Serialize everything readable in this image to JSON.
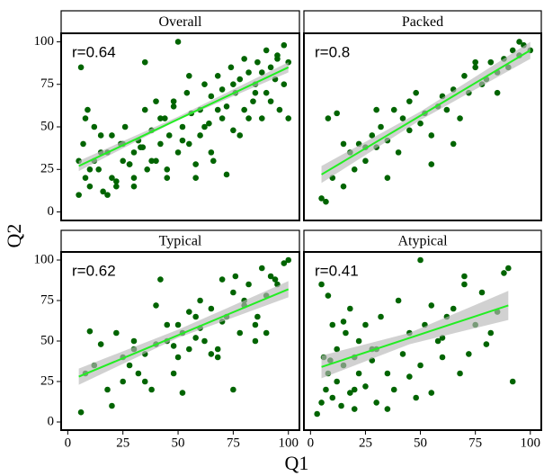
{
  "chart_data": {
    "type": "scatter",
    "x_label": "Q1",
    "y_label": "Q2",
    "xlim": [
      -3,
      105
    ],
    "ylim": [
      -5,
      105
    ],
    "xticks": [
      0,
      25,
      50,
      75,
      100
    ],
    "yticks": [
      0,
      25,
      50,
      75,
      100
    ],
    "color": "#006400",
    "line_color": "#22ee22",
    "band_color": "#b8b8b8",
    "panels": [
      {
        "title": "Overall",
        "annotation": "r=0.64",
        "x": [
          5,
          6,
          7,
          8,
          9,
          10,
          12,
          14,
          15,
          16,
          18,
          20,
          22,
          24,
          25,
          26,
          28,
          30,
          30,
          32,
          34,
          35,
          36,
          38,
          40,
          40,
          42,
          44,
          45,
          46,
          48,
          50,
          50,
          52,
          54,
          55,
          56,
          58,
          60,
          60,
          62,
          64,
          65,
          66,
          68,
          70,
          70,
          72,
          74,
          75,
          76,
          78,
          80,
          80,
          82,
          84,
          85,
          86,
          88,
          90,
          90,
          92,
          94,
          95,
          96,
          98,
          100,
          100,
          5,
          8,
          10,
          12,
          15,
          18,
          20,
          22,
          25,
          28,
          30,
          33,
          35,
          38,
          42,
          45,
          48,
          52,
          55,
          58,
          62,
          65,
          68,
          72,
          75,
          78,
          82,
          85,
          88,
          92,
          95,
          98
        ],
        "y": [
          10,
          85,
          40,
          20,
          60,
          15,
          30,
          25,
          45,
          12,
          35,
          20,
          18,
          40,
          30,
          50,
          28,
          35,
          15,
          42,
          38,
          60,
          25,
          48,
          30,
          65,
          40,
          55,
          20,
          45,
          62,
          100,
          35,
          50,
          70,
          40,
          58,
          28,
          60,
          45,
          75,
          52,
          68,
          30,
          80,
          55,
          72,
          62,
          85,
          48,
          70,
          78,
          90,
          60,
          82,
          65,
          75,
          88,
          55,
          95,
          70,
          85,
          78,
          92,
          60,
          98,
          88,
          55,
          30,
          55,
          25,
          50,
          35,
          10,
          45,
          15,
          40,
          28,
          20,
          38,
          88,
          30,
          55,
          25,
          65,
          42,
          80,
          20,
          50,
          35,
          60,
          22,
          75,
          45,
          55,
          70,
          82,
          65,
          90,
          75
        ],
        "fit": {
          "x": [
            5,
            100
          ],
          "y": [
            27,
            85
          ]
        },
        "band": {
          "x": [
            5,
            50,
            100
          ],
          "lower": [
            24,
            54,
            82
          ],
          "upper": [
            30,
            56,
            88
          ]
        }
      },
      {
        "title": "Packed",
        "annotation": "r=0.8",
        "x": [
          5,
          7,
          10,
          12,
          15,
          18,
          20,
          22,
          25,
          28,
          30,
          32,
          35,
          38,
          40,
          42,
          45,
          48,
          50,
          52,
          55,
          58,
          60,
          62,
          65,
          68,
          70,
          72,
          75,
          78,
          80,
          82,
          85,
          88,
          90,
          92,
          95,
          97,
          100,
          8,
          15,
          25,
          35,
          45,
          55,
          65,
          75,
          85,
          95,
          30
        ],
        "y": [
          8,
          6,
          20,
          58,
          15,
          35,
          25,
          40,
          30,
          45,
          38,
          50,
          42,
          60,
          35,
          55,
          48,
          70,
          52,
          58,
          45,
          62,
          68,
          60,
          72,
          55,
          80,
          70,
          85,
          75,
          78,
          88,
          82,
          90,
          85,
          95,
          92,
          98,
          95,
          55,
          40,
          38,
          20,
          65,
          28,
          40,
          88,
          70,
          100,
          60
        ],
        "fit": {
          "x": [
            5,
            100
          ],
          "y": [
            22,
            95
          ]
        },
        "band": {
          "x": [
            5,
            50,
            100
          ],
          "lower": [
            17,
            54,
            90
          ],
          "upper": [
            27,
            59,
            100
          ]
        }
      },
      {
        "title": "Typical",
        "annotation": "r=0.62",
        "x": [
          6,
          8,
          10,
          15,
          18,
          20,
          22,
          25,
          28,
          30,
          32,
          35,
          38,
          40,
          42,
          45,
          48,
          50,
          52,
          55,
          58,
          60,
          62,
          65,
          68,
          70,
          72,
          75,
          78,
          80,
          82,
          85,
          88,
          90,
          92,
          95,
          98,
          100,
          12,
          25,
          35,
          45,
          50,
          55,
          60,
          65,
          70,
          75,
          80,
          85,
          90,
          40,
          52,
          68,
          76,
          86,
          94,
          58,
          30,
          48
        ],
        "y": [
          6,
          30,
          56,
          48,
          20,
          10,
          55,
          40,
          35,
          45,
          30,
          42,
          20,
          48,
          88,
          50,
          30,
          60,
          55,
          45,
          65,
          58,
          50,
          70,
          40,
          62,
          65,
          80,
          55,
          72,
          85,
          60,
          95,
          78,
          90,
          85,
          98,
          100,
          35,
          25,
          25,
          60,
          40,
          68,
          75,
          42,
          88,
          20,
          75,
          50,
          55,
          72,
          18,
          45,
          90,
          65,
          88,
          52,
          50,
          47
        ],
        "fit": {
          "x": [
            5,
            100
          ],
          "y": [
            28,
            82
          ]
        },
        "band": {
          "x": [
            5,
            50,
            100
          ],
          "lower": [
            23,
            52,
            77
          ],
          "upper": [
            33,
            57,
            87
          ]
        }
      },
      {
        "title": "Atypical",
        "annotation": "r=0.41",
        "x": [
          3,
          5,
          6,
          7,
          8,
          8,
          10,
          10,
          12,
          12,
          14,
          15,
          16,
          18,
          18,
          20,
          20,
          22,
          22,
          25,
          25,
          28,
          30,
          30,
          32,
          35,
          38,
          40,
          42,
          45,
          48,
          50,
          50,
          52,
          55,
          55,
          58,
          60,
          62,
          65,
          68,
          70,
          72,
          75,
          78,
          80,
          82,
          88,
          90,
          92,
          5,
          9,
          15,
          20,
          28,
          35,
          45,
          60,
          70,
          85
        ],
        "y": [
          5,
          85,
          40,
          20,
          78,
          30,
          60,
          15,
          45,
          25,
          10,
          35,
          55,
          18,
          70,
          40,
          8,
          30,
          50,
          22,
          60,
          38,
          12,
          45,
          65,
          30,
          20,
          75,
          42,
          55,
          15,
          100,
          35,
          60,
          18,
          72,
          50,
          40,
          65,
          70,
          30,
          85,
          42,
          60,
          80,
          48,
          55,
          92,
          95,
          25,
          12,
          38,
          62,
          20,
          45,
          8,
          28,
          52,
          90,
          68
        ],
        "fit": {
          "x": [
            5,
            90
          ],
          "y": [
            34,
            72
          ]
        },
        "band": {
          "x": [
            5,
            45,
            90
          ],
          "lower": [
            27,
            48,
            63
          ],
          "upper": [
            41,
            55,
            81
          ]
        }
      }
    ]
  }
}
